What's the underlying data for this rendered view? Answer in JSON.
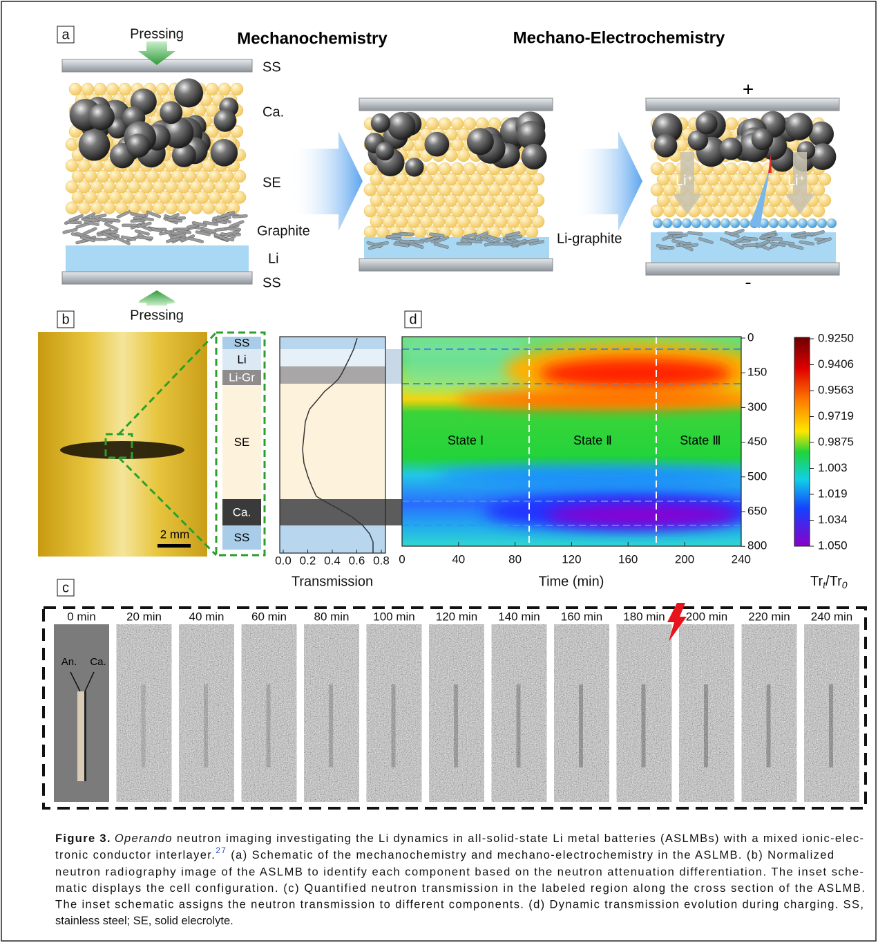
{
  "panel_a": {
    "label": "a",
    "title_left": "Mechanochemistry",
    "title_right": "Mechano-Electrochemistry",
    "pressing_top": "Pressing",
    "pressing_bottom": "Pressing",
    "layers": [
      "SS",
      "Ca.",
      "SE",
      "Graphite",
      "Li",
      "SS"
    ],
    "li_graphite": "Li-graphite",
    "plus": "+",
    "minus": "-",
    "li_ion": [
      "Li⁺",
      "Li⁺"
    ]
  },
  "panel_b": {
    "label": "b",
    "scale_bar": "2 mm",
    "layers": [
      "SS",
      "Li",
      "Li-Gr",
      "SE",
      "Ca.",
      "SS"
    ],
    "x_ticks": [
      "0.0",
      "0.2",
      "0.4",
      "0.6",
      "0.8"
    ],
    "x_label": "Transmission"
  },
  "panel_d": {
    "label": "d",
    "x_ticks": [
      "0",
      "40",
      "80",
      "120",
      "160",
      "200",
      "240"
    ],
    "x_label": "Time (min)",
    "y_ticks": [
      "0",
      "150",
      "300",
      "450",
      "500",
      "650",
      "800"
    ],
    "states": [
      "State Ⅰ",
      "State Ⅱ",
      "State Ⅲ"
    ],
    "colorbar_ticks": [
      "0.9250",
      "0.9406",
      "0.9563",
      "0.9719",
      "0.9875",
      "1.003",
      "1.019",
      "1.034",
      "1.050"
    ],
    "colorbar_label": [
      "Tr",
      "t",
      "/Tr",
      "0"
    ]
  },
  "panel_c": {
    "label": "c",
    "frames": [
      "0 min",
      "20 min",
      "40 min",
      "60 min",
      "80 min",
      "100 min",
      "120 min",
      "140 min",
      "160 min",
      "180 min",
      "200 min",
      "220 min",
      "240 min"
    ],
    "anode": "An.",
    "cathode": "Ca."
  },
  "caption": {
    "label": "Figure 3.",
    "italic": "Operando",
    "line1_rest": " neutron imaging investigating the Li dynamics in all-solid-state Li metal batteries (ASLMBs) with a mixed ionic-elec-",
    "line2_start": "tronic conductor interlayer.",
    "ref": "27",
    "line2_rest": " (a) Schematic of the mechanochemistry and mechano-electrochemistry in the ASLMB. (b) Normalized",
    "lines": [
      "neutron radiography image of the ASLMB to identify each component based on the neutron attenuation differentiation. The inset sche-",
      "matic displays the cell configuration. (c) Quantified neutron transmission in the labeled region along the cross section of the ASLMB.",
      "The inset schematic assigns the neutron transmission to different components. (d) Dynamic transmission evolution during charging. SS,",
      "stainless steel; SE, solid elecrolyte."
    ]
  }
}
